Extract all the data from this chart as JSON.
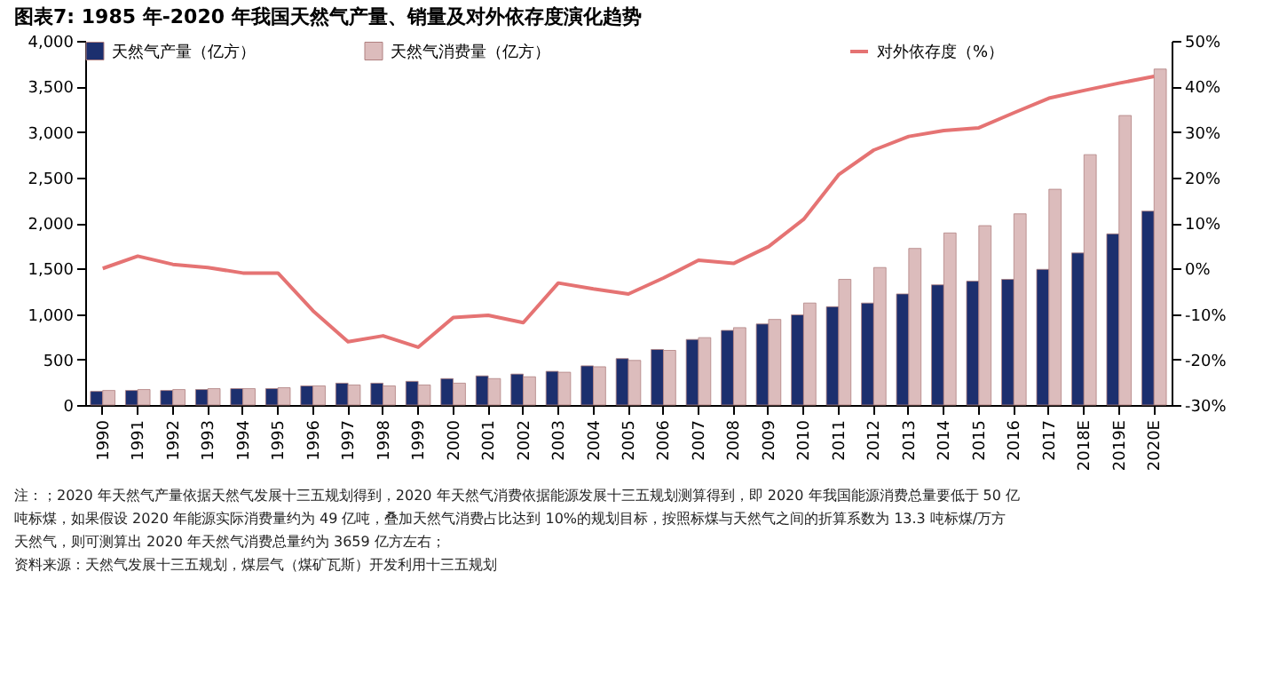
{
  "chart_data": {
    "type": "bar",
    "title": "图表7:  1985 年-2020 年我国天然气产量、销量及对外依存度演化趋势",
    "categories": [
      "1990",
      "1991",
      "1992",
      "1993",
      "1994",
      "1995",
      "1996",
      "1997",
      "1998",
      "1999",
      "2000",
      "2001",
      "2002",
      "2003",
      "2004",
      "2005",
      "2006",
      "2007",
      "2008",
      "2009",
      "2010",
      "2011",
      "2012",
      "2013",
      "2014",
      "2015",
      "2016",
      "2017",
      "2018E",
      "2019E",
      "2020E"
    ],
    "series": [
      {
        "name": "天然气产量（亿方）",
        "color": "#1c2f6e",
        "values": [
          150,
          160,
          160,
          170,
          180,
          180,
          210,
          240,
          240,
          260,
          290,
          320,
          340,
          370,
          430,
          510,
          610,
          720,
          820,
          890,
          990,
          1080,
          1120,
          1220,
          1320,
          1360,
          1380,
          1490,
          1670,
          1880,
          2130
        ]
      },
      {
        "name": "天然气消费量（亿方）",
        "color": "#dcbcbc",
        "values": [
          160,
          170,
          170,
          180,
          180,
          190,
          210,
          220,
          210,
          220,
          240,
          290,
          310,
          360,
          420,
          490,
          600,
          740,
          850,
          940,
          1120,
          1380,
          1510,
          1720,
          1890,
          1970,
          2100,
          2370,
          2750,
          3180,
          3690
        ]
      },
      {
        "name": "对外依存度（%）",
        "type": "line",
        "axis": "y2",
        "color": "#e57373",
        "values": [
          0,
          2.7,
          0.9,
          0.2,
          -1,
          -1,
          -9.3,
          -16.1,
          -14.8,
          -17.3,
          -10.8,
          -10.3,
          -11.9,
          -3.2,
          -4.5,
          -5.6,
          -2.1,
          1.8,
          1.1,
          4.8,
          10.8,
          20.6,
          26,
          29,
          30.3,
          30.9,
          34.2,
          37.4,
          39.1,
          40.7,
          42.2
        ]
      }
    ],
    "ylim": [
      0,
      4000
    ],
    "yticks": [
      0,
      500,
      {
        "value": 1000,
        "label": "1,000"
      },
      {
        "value": 1500,
        "label": "1,500"
      },
      {
        "value": 2000,
        "label": "2,000"
      },
      {
        "value": 2500,
        "label": "2,500"
      },
      {
        "value": 3000,
        "label": "3,000"
      },
      {
        "value": 3500,
        "label": "3,500"
      },
      {
        "value": 4000,
        "label": "4,000"
      }
    ],
    "y2lim": [
      -30,
      50
    ],
    "y2ticks": [
      {
        "value": -30,
        "label": "-30%"
      },
      {
        "value": -20,
        "label": "-20%"
      },
      {
        "value": -10,
        "label": "-10%"
      },
      {
        "value": 0,
        "label": "0%"
      },
      {
        "value": 10,
        "label": "10%"
      },
      {
        "value": 20,
        "label": "20%"
      },
      {
        "value": 30,
        "label": "30%"
      },
      {
        "value": 40,
        "label": "40%"
      },
      {
        "value": 50,
        "label": "50%"
      }
    ],
    "grid": false,
    "legend": "top",
    "annotations": [
      "注：；2020 年天然气产量依据天然气发展十三五规划得到，2020 年天然气消费依据能源发展十三五规划测算得到，即 2020 年我国能源消费总量要低于 50 亿吨标煤，如果假设 2020 年能源实际消费量约为 49 亿吨，叠加天然气消费占比达到 10%的规划目标，按照标煤与天然气之间的折算系数为 13.3 吨标煤/万方天然气，则可测算出 2020 年天然气消费总量约为 3659 亿方左右；",
      "资料来源：天然气发展十三五规划，煤层气（煤矿瓦斯）开发利用十三五规划"
    ]
  }
}
